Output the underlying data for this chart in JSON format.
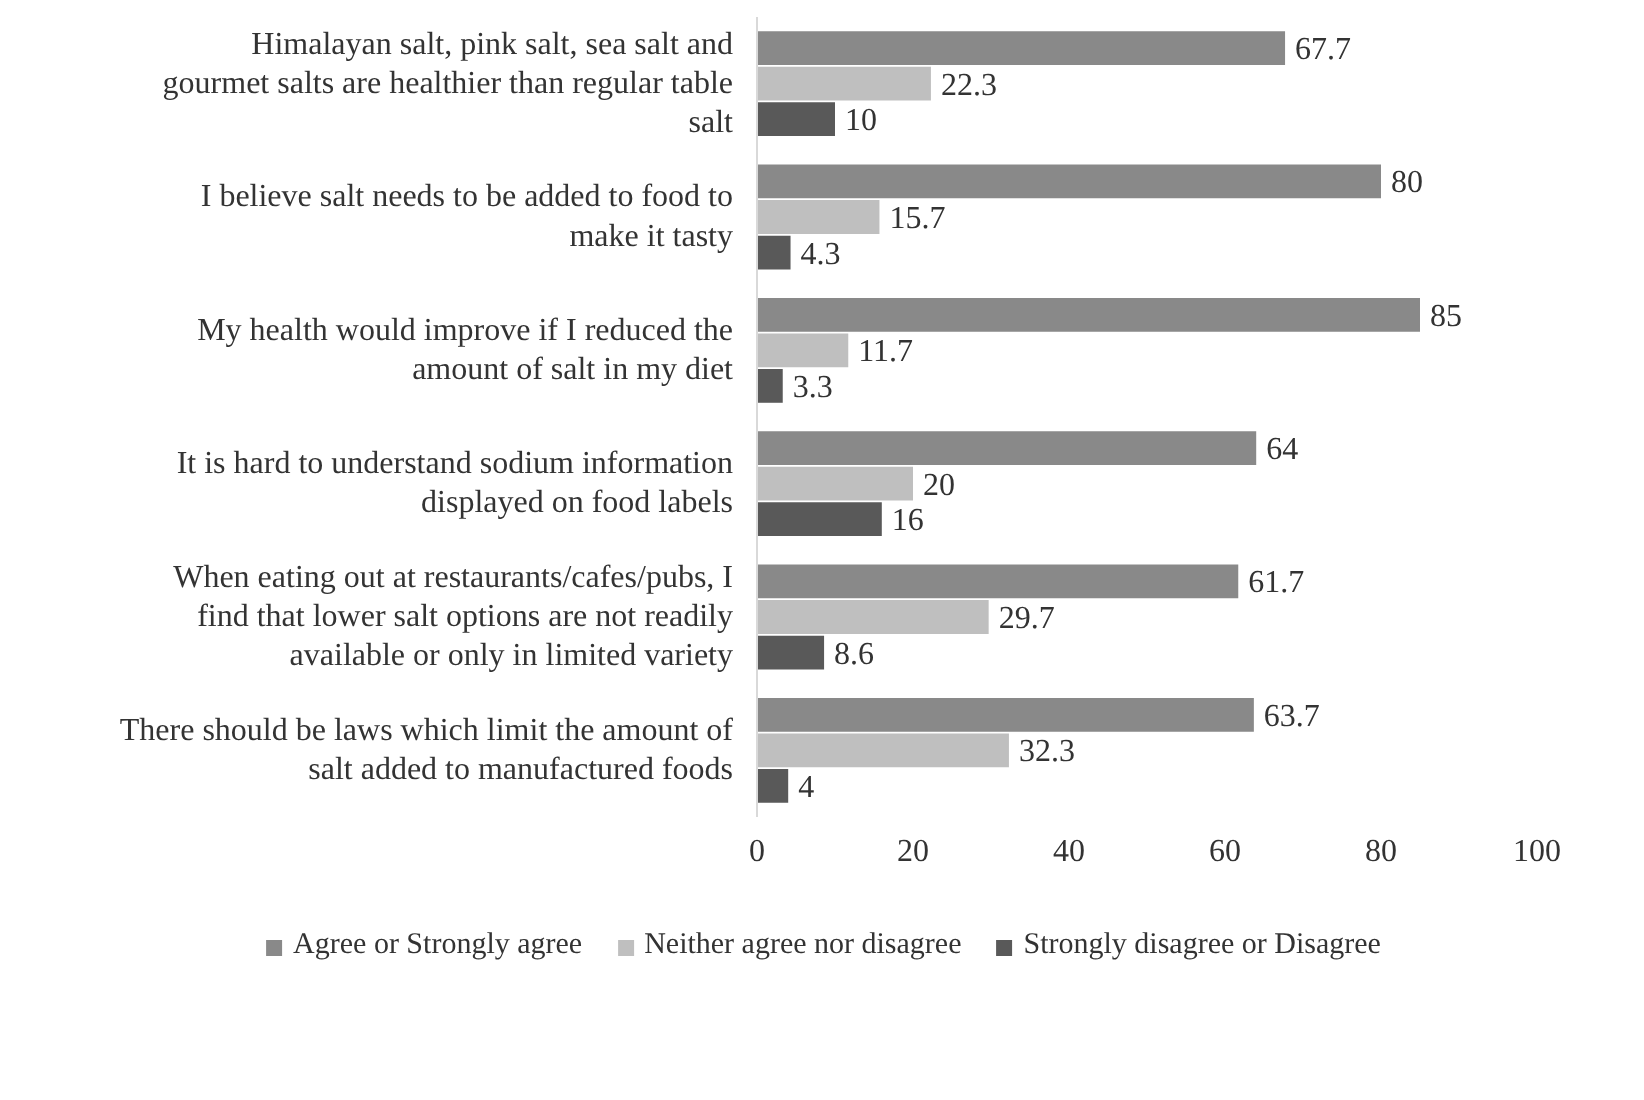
{
  "chart_data": {
    "type": "bar",
    "orientation": "horizontal",
    "categories": [
      "Himalayan salt, pink salt, sea salt and gourmet salts are healthier than regular table salt",
      "I believe salt needs to be added to food to make it tasty",
      "My health would improve if I reduced the amount of salt in my diet",
      "It is hard to understand sodium information displayed on food labels",
      "When eating out at restaurants/cafes/pubs, I find that lower salt options are not readily available or only in limited variety",
      "There should be laws which limit the amount of salt added to manufactured foods"
    ],
    "series": [
      {
        "name": "Agree or Strongly agree",
        "color": "#898989",
        "values": [
          67.7,
          80,
          85,
          64,
          61.7,
          63.7
        ]
      },
      {
        "name": "Neither agree nor disagree",
        "color": "#bfbfbf",
        "values": [
          22.3,
          15.7,
          11.7,
          20,
          29.7,
          32.3
        ]
      },
      {
        "name": "Strongly disagree or Disagree",
        "color": "#595959",
        "values": [
          10,
          4.3,
          3.3,
          16,
          8.6,
          4
        ]
      }
    ],
    "xlim": [
      0,
      100
    ],
    "xticks": [
      0,
      20,
      40,
      60,
      80,
      100
    ],
    "grid": false,
    "data_labels": true,
    "legend": "bottom"
  }
}
